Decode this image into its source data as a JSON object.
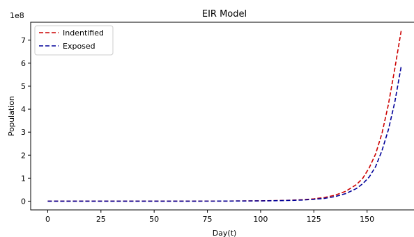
{
  "chart_data": {
    "type": "line",
    "title": "EIR Model",
    "xlabel": "Day(t)",
    "ylabel": "Population",
    "y_scale_label": "1e8",
    "xlim": [
      -8,
      174
    ],
    "ylim": [
      -0.38,
      7.78
    ],
    "x_ticks": [
      0,
      25,
      50,
      75,
      100,
      125,
      150
    ],
    "x_tick_labels": [
      "0",
      "25",
      "50",
      "75",
      "100",
      "125",
      "150"
    ],
    "y_ticks": [
      0,
      1,
      2,
      3,
      4,
      5,
      6,
      7
    ],
    "y_tick_labels": [
      "0",
      "1",
      "2",
      "3",
      "4",
      "5",
      "6",
      "7"
    ],
    "legend_position": "top-left",
    "grid": false,
    "series": [
      {
        "name": "Indentified",
        "color": "#cc0000",
        "line_style": "dashed",
        "x": [
          0,
          20,
          40,
          60,
          80,
          100,
          110,
          115,
          120,
          125,
          130,
          135,
          140,
          145,
          148,
          151,
          154,
          157,
          160,
          163,
          166
        ],
        "values": [
          0,
          0,
          0,
          0,
          0.002,
          0.015,
          0.03,
          0.045,
          0.065,
          0.1,
          0.16,
          0.26,
          0.43,
          0.72,
          1.0,
          1.45,
          2.05,
          2.95,
          4.2,
          5.75,
          7.4
        ]
      },
      {
        "name": "Exposed",
        "color": "#000099",
        "line_style": "dashed",
        "x": [
          0,
          20,
          40,
          60,
          80,
          100,
          110,
          115,
          120,
          125,
          130,
          135,
          140,
          145,
          148,
          151,
          154,
          157,
          160,
          163,
          166
        ],
        "values": [
          0,
          0,
          0,
          0,
          0.002,
          0.012,
          0.025,
          0.035,
          0.05,
          0.08,
          0.12,
          0.2,
          0.33,
          0.55,
          0.76,
          1.05,
          1.5,
          2.2,
          3.1,
          4.3,
          5.85
        ]
      }
    ]
  }
}
